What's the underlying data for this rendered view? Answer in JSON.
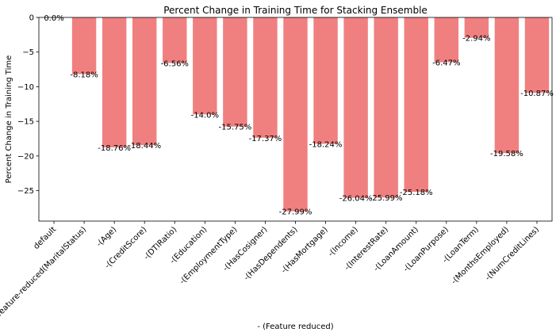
{
  "chart_data": {
    "type": "bar",
    "title": "Percent Change in Training Time for Stacking Ensemble",
    "xlabel": "- (Feature reduced)",
    "ylabel": "Percent Change in Training Time",
    "categories": [
      "default",
      "feature-reduced(MaritalStatus)",
      "-(Age)",
      "-(CreditScore)",
      "-(DTIRatio)",
      "-(Education)",
      "-(EmploymentType)",
      "-(HasCosigner)",
      "-(HasDependents)",
      "-(HasMortgage)",
      "-(Income)",
      "-(InterestRate)",
      "-(LoanAmount)",
      "-(LoanPurpose)",
      "-(LoanTerm)",
      "-(MonthsEmployed)",
      "-(NumCreditLines)"
    ],
    "values": [
      0.0,
      -8.18,
      -18.76,
      -18.44,
      -6.56,
      -14.0,
      -15.75,
      -17.37,
      -27.99,
      -18.24,
      -26.04,
      -25.99,
      -25.18,
      -6.47,
      -2.94,
      -19.58,
      -10.87
    ],
    "value_labels": [
      "0.0%",
      "-8.18%",
      "-18.76%",
      "-18.44%",
      "-6.56%",
      "-14.0%",
      "-15.75%",
      "-17.37%",
      "-27.99%",
      "-18.24%",
      "-26.04%",
      "-25.99%",
      "-25.18%",
      "-6.47%",
      "-2.94%",
      "-19.58%",
      "-10.87%"
    ],
    "ylim": [
      -29.4,
      0
    ],
    "yticks": [
      0,
      -5,
      -10,
      -15,
      -20,
      -25
    ],
    "ytick_labels": [
      "0",
      "−5",
      "−10",
      "−15",
      "−20",
      "−25"
    ],
    "bar_color": "#f08080",
    "grid": false
  }
}
